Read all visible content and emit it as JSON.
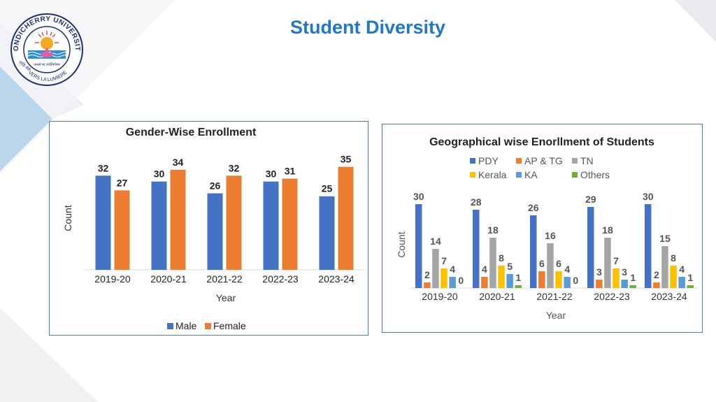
{
  "page": {
    "title": "Student Diversity"
  },
  "logo": {
    "ring_text": "PONDICHERRY UNIVERSITY",
    "motto": "VERS LA LUMIERE",
    "hindi_left": "पांडि-चेरी",
    "hindi_mid": "तमसो मा ज्योतिर्गमय"
  },
  "colors": {
    "title": "#1f78c8",
    "male": "#4472c4",
    "female": "#ed7d31",
    "PDY": "#4472c4",
    "AP & TG": "#ed7d31",
    "TN": "#a5a5a5",
    "Kerala": "#ffc000",
    "KA": "#5b9bd5",
    "Others": "#70ad47",
    "panel_border": "#4a78c2"
  },
  "chart_data": [
    {
      "type": "bar",
      "title": "Gender-Wise Enrollment",
      "xlabel": "Year",
      "ylabel": "Count",
      "categories": [
        "2019-20",
        "2020-21",
        "2021-22",
        "2022-23",
        "2023-24"
      ],
      "series": [
        {
          "name": "Male",
          "values": [
            32,
            30,
            26,
            30,
            25
          ]
        },
        {
          "name": "Female",
          "values": [
            27,
            34,
            32,
            31,
            35
          ]
        }
      ],
      "ylim": [
        0,
        38
      ],
      "grid": false,
      "legend": "bottom",
      "data_labels": true
    },
    {
      "type": "bar",
      "title": "Geographical wise Enorllment of Students",
      "xlabel": "Year",
      "ylabel": "Count",
      "categories": [
        "2019-20",
        "2020-21",
        "2021-22",
        "2022-23",
        "2023-24"
      ],
      "series": [
        {
          "name": "PDY",
          "values": [
            30,
            28,
            26,
            29,
            30
          ]
        },
        {
          "name": "AP & TG",
          "values": [
            2,
            4,
            6,
            3,
            2
          ]
        },
        {
          "name": "TN",
          "values": [
            14,
            18,
            16,
            18,
            15
          ]
        },
        {
          "name": "Kerala",
          "values": [
            7,
            8,
            6,
            7,
            8
          ]
        },
        {
          "name": "KA",
          "values": [
            4,
            5,
            4,
            3,
            4
          ]
        },
        {
          "name": "Others",
          "values": [
            0,
            1,
            0,
            1,
            1
          ]
        }
      ],
      "ylim": [
        0,
        32
      ],
      "grid": false,
      "legend": "top",
      "data_labels": true
    }
  ]
}
